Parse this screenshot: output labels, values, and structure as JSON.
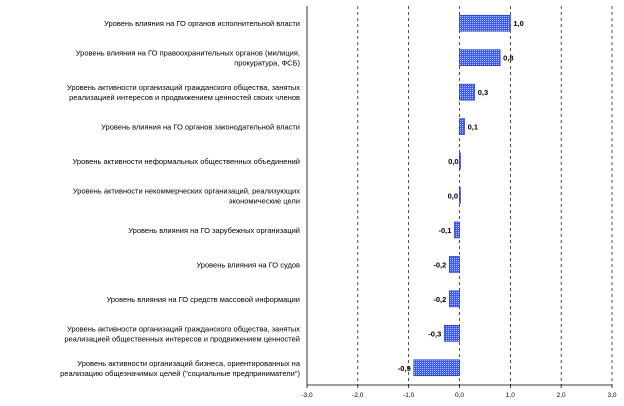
{
  "chart_data": {
    "type": "bar",
    "orientation": "horizontal",
    "categories": [
      [
        "Уровень влияния на ГО органов исполнительной власти"
      ],
      [
        "Уровень влияния на ГО правоохранительных органов (милиция,",
        "прокуратура, ФСБ)"
      ],
      [
        "Уровень активности организаций гражданского общества, занятых",
        "реализацией интересов и продвижением ценностей своих членов"
      ],
      [
        "Уровень влияния на ГО органов законодательной власти"
      ],
      [
        "Уровень активности неформальных общественных объединений"
      ],
      [
        "Уровень активности некоммерческих организаций, реализующих",
        "экономические цели"
      ],
      [
        "Уровень влияния на ГО зарубежных организаций"
      ],
      [
        "Уровень влияния на ГО судов"
      ],
      [
        "Уровень влияния на ГО средств массовой информации"
      ],
      [
        "Уровень активности организаций гражданского общества, занятых",
        "реализацией общественных интересов и продвижением ценностей"
      ],
      [
        "Уровень активности организаций бизнеса, ориентированных на",
        "реализацию общезначимых целей (\"социальные предприниматели\")"
      ]
    ],
    "values": [
      1.0,
      0.8,
      0.3,
      0.1,
      0.02,
      0.01,
      -0.1,
      -0.2,
      -0.2,
      -0.3,
      -0.9
    ],
    "value_labels": [
      "1,0",
      "0,8",
      "0,3",
      "0,1",
      "0,0",
      "0,0",
      "-0,1",
      "-0,2",
      "-0,2",
      "-0,3",
      "-0,9"
    ],
    "xlim": [
      -3.0,
      3.0
    ],
    "xticks": [
      -3.0,
      -2.0,
      -1.0,
      0.0,
      1.0,
      2.0,
      3.0
    ],
    "xtick_labels": [
      "-3,0",
      "-2,0",
      "-1,0",
      "0,0",
      "1,0",
      "2,0",
      "3,0"
    ],
    "grid": "vertical-dashed",
    "bar_color": "#3b5bff",
    "bar_pattern": "dotted",
    "title": "",
    "xlabel": "",
    "ylabel": ""
  }
}
